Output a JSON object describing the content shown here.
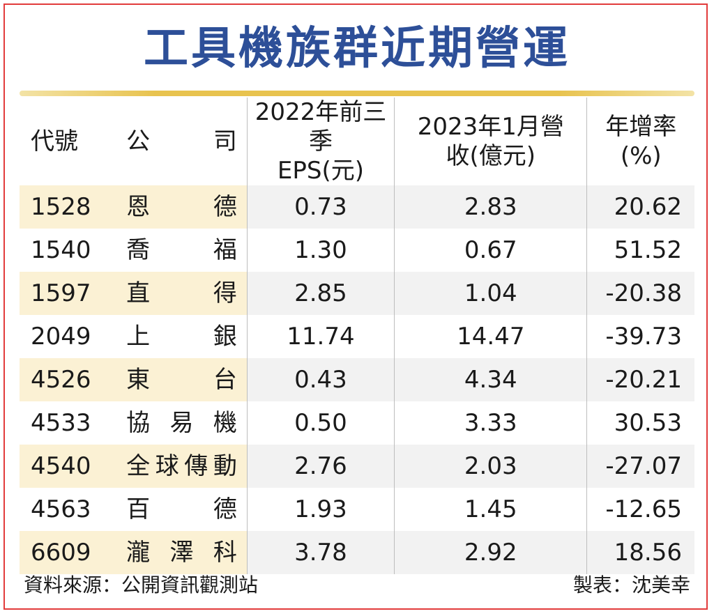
{
  "title": "工具機族群近期營運",
  "headers": {
    "code": "代號",
    "company": [
      "公",
      "司"
    ],
    "eps_line1": "2022年前三季",
    "eps_line2": "EPS(元)",
    "rev_line1": "2023年1月營",
    "rev_line2": "收(億元)",
    "growth_line1": "年增率",
    "growth_line2": "(%)"
  },
  "rows": [
    {
      "code": "1528",
      "name": [
        "恩",
        "德"
      ],
      "eps": "0.73",
      "revenue": "2.83",
      "growth": "20.62"
    },
    {
      "code": "1540",
      "name": [
        "喬",
        "福"
      ],
      "eps": "1.30",
      "revenue": "0.67",
      "growth": "51.52"
    },
    {
      "code": "1597",
      "name": [
        "直",
        "得"
      ],
      "eps": "2.85",
      "revenue": "1.04",
      "growth": "-20.38"
    },
    {
      "code": "2049",
      "name": [
        "上",
        "銀"
      ],
      "eps": "11.74",
      "revenue": "14.47",
      "growth": "-39.73"
    },
    {
      "code": "4526",
      "name": [
        "東",
        "台"
      ],
      "eps": "0.43",
      "revenue": "4.34",
      "growth": "-20.21"
    },
    {
      "code": "4533",
      "name": [
        "協",
        "易",
        "機"
      ],
      "eps": "0.50",
      "revenue": "3.33",
      "growth": "30.53"
    },
    {
      "code": "4540",
      "name": [
        "全",
        "球",
        "傳",
        "動"
      ],
      "eps": "2.76",
      "revenue": "2.03",
      "growth": "-27.07"
    },
    {
      "code": "4563",
      "name": [
        "百",
        "德"
      ],
      "eps": "1.93",
      "revenue": "1.45",
      "growth": "-12.65"
    },
    {
      "code": "6609",
      "name": [
        "瀧",
        "澤",
        "科"
      ],
      "eps": "3.78",
      "revenue": "2.92",
      "growth": "18.56"
    }
  ],
  "footer": {
    "source": "資料來源：公開資訊觀測站",
    "author": "製表：沈美幸"
  },
  "colors": {
    "title": "#2d4f98",
    "border": "#e23b3b",
    "rule": "#e8c34f",
    "shade_left": "#fbf1d4",
    "shade_right": "#f2f2f2"
  }
}
